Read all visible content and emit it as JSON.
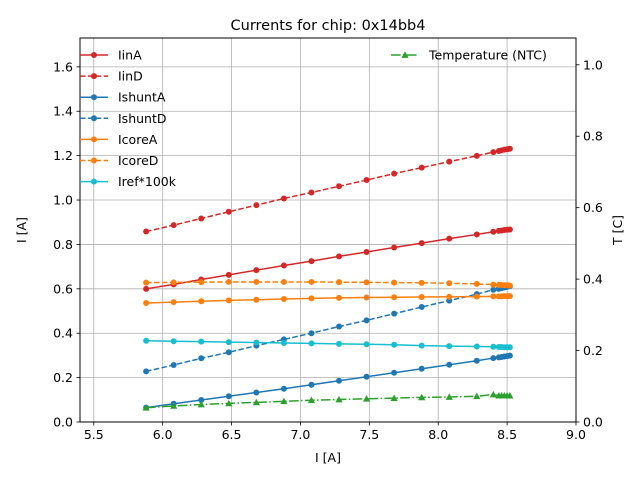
{
  "chart_data": {
    "type": "line",
    "title": "Currents for chip: 0x14bb4",
    "xlabel": "I [A]",
    "ylabel": "I [A]",
    "y2label": "T [C]",
    "xlim": [
      5.4,
      9.0
    ],
    "ylim": [
      0.0,
      1.73
    ],
    "y2lim": [
      0.0,
      1.075
    ],
    "grid": true,
    "x_ticks": [
      {
        "value": 5.5,
        "label": "5.5"
      },
      {
        "value": 6.0,
        "label": "6.0"
      },
      {
        "value": 6.5,
        "label": "6.5"
      },
      {
        "value": 7.0,
        "label": "7.0"
      },
      {
        "value": 7.5,
        "label": "7.5"
      },
      {
        "value": 8.0,
        "label": "8.0"
      },
      {
        "value": 8.5,
        "label": "8.5"
      },
      {
        "value": 9.0,
        "label": "9.0"
      }
    ],
    "y_ticks": [
      {
        "value": 0.0,
        "label": "0.0"
      },
      {
        "value": 0.2,
        "label": "0.2"
      },
      {
        "value": 0.4,
        "label": "0.4"
      },
      {
        "value": 0.6,
        "label": "0.6"
      },
      {
        "value": 0.8,
        "label": "0.8"
      },
      {
        "value": 1.0,
        "label": "1.0"
      },
      {
        "value": 1.2,
        "label": "1.2"
      },
      {
        "value": 1.4,
        "label": "1.4"
      },
      {
        "value": 1.6,
        "label": "1.6"
      }
    ],
    "y2_ticks": [
      {
        "value": 0.0,
        "label": "0.0"
      },
      {
        "value": 0.2,
        "label": "0.2"
      },
      {
        "value": 0.4,
        "label": "0.4"
      },
      {
        "value": 0.6,
        "label": "0.6"
      },
      {
        "value": 0.8,
        "label": "0.8"
      },
      {
        "value": 1.0,
        "label": "1.0"
      }
    ],
    "x": [
      5.88,
      6.08,
      6.28,
      6.48,
      6.68,
      6.88,
      7.08,
      7.28,
      7.48,
      7.68,
      7.88,
      8.08,
      8.28,
      8.4,
      8.44,
      8.46,
      8.48,
      8.5,
      8.52
    ],
    "series": [
      {
        "name": "IinA",
        "axis": "left",
        "color": "#d62728",
        "dash": "solid",
        "marker": "circle",
        "values": [
          0.6,
          0.62,
          0.642,
          0.663,
          0.684,
          0.705,
          0.725,
          0.746,
          0.766,
          0.786,
          0.806,
          0.826,
          0.845,
          0.857,
          0.861,
          0.863,
          0.865,
          0.866,
          0.867
        ]
      },
      {
        "name": "IinD",
        "axis": "left",
        "color": "#d62728",
        "dash": "dashed",
        "marker": "circle",
        "values": [
          0.858,
          0.887,
          0.917,
          0.947,
          0.977,
          1.007,
          1.034,
          1.062,
          1.09,
          1.119,
          1.146,
          1.173,
          1.199,
          1.216,
          1.221,
          1.224,
          1.227,
          1.229,
          1.231
        ]
      },
      {
        "name": "IshuntA",
        "axis": "left",
        "color": "#1f77b4",
        "dash": "solid",
        "marker": "circle",
        "values": [
          0.065,
          0.082,
          0.099,
          0.116,
          0.133,
          0.15,
          0.168,
          0.186,
          0.204,
          0.222,
          0.24,
          0.258,
          0.276,
          0.288,
          0.291,
          0.293,
          0.295,
          0.297,
          0.299
        ]
      },
      {
        "name": "IshuntD",
        "axis": "left",
        "color": "#1f77b4",
        "dash": "dashed",
        "marker": "circle",
        "values": [
          0.228,
          0.257,
          0.287,
          0.314,
          0.344,
          0.372,
          0.4,
          0.43,
          0.458,
          0.488,
          0.518,
          0.547,
          0.576,
          0.596,
          0.6,
          0.603,
          0.606,
          0.609,
          0.612
        ]
      },
      {
        "name": "IcoreA",
        "axis": "left",
        "color": "#ff7f0e",
        "dash": "solid",
        "marker": "circle",
        "values": [
          0.536,
          0.54,
          0.544,
          0.548,
          0.551,
          0.554,
          0.557,
          0.559,
          0.561,
          0.562,
          0.563,
          0.564,
          0.565,
          0.566,
          0.566,
          0.566,
          0.567,
          0.567,
          0.567
        ]
      },
      {
        "name": "IcoreD",
        "axis": "left",
        "color": "#ff7f0e",
        "dash": "dashed",
        "marker": "circle",
        "values": [
          0.628,
          0.629,
          0.63,
          0.631,
          0.631,
          0.631,
          0.631,
          0.63,
          0.629,
          0.628,
          0.627,
          0.625,
          0.622,
          0.619,
          0.618,
          0.617,
          0.616,
          0.616,
          0.615
        ]
      },
      {
        "name": "Iref*100k",
        "axis": "left",
        "color": "#17becf",
        "dash": "solid",
        "marker": "circle",
        "values": [
          0.366,
          0.364,
          0.362,
          0.36,
          0.358,
          0.356,
          0.354,
          0.352,
          0.35,
          0.348,
          0.344,
          0.342,
          0.34,
          0.339,
          0.338,
          0.338,
          0.337,
          0.337,
          0.337
        ]
      },
      {
        "name": "Temperature (NTC)",
        "axis": "right",
        "color": "#2ca02c",
        "dash": "dashdot",
        "marker": "triangle",
        "values": [
          0.04,
          0.045,
          0.049,
          0.052,
          0.055,
          0.058,
          0.061,
          0.063,
          0.065,
          0.067,
          0.069,
          0.07,
          0.072,
          0.077,
          0.074,
          0.074,
          0.074,
          0.074,
          0.074
        ]
      }
    ],
    "legend_left": [
      "IinA",
      "IinD",
      "IshuntA",
      "IshuntD",
      "IcoreA",
      "IcoreD",
      "Iref*100k"
    ],
    "legend_right": [
      "Temperature (NTC)"
    ]
  }
}
